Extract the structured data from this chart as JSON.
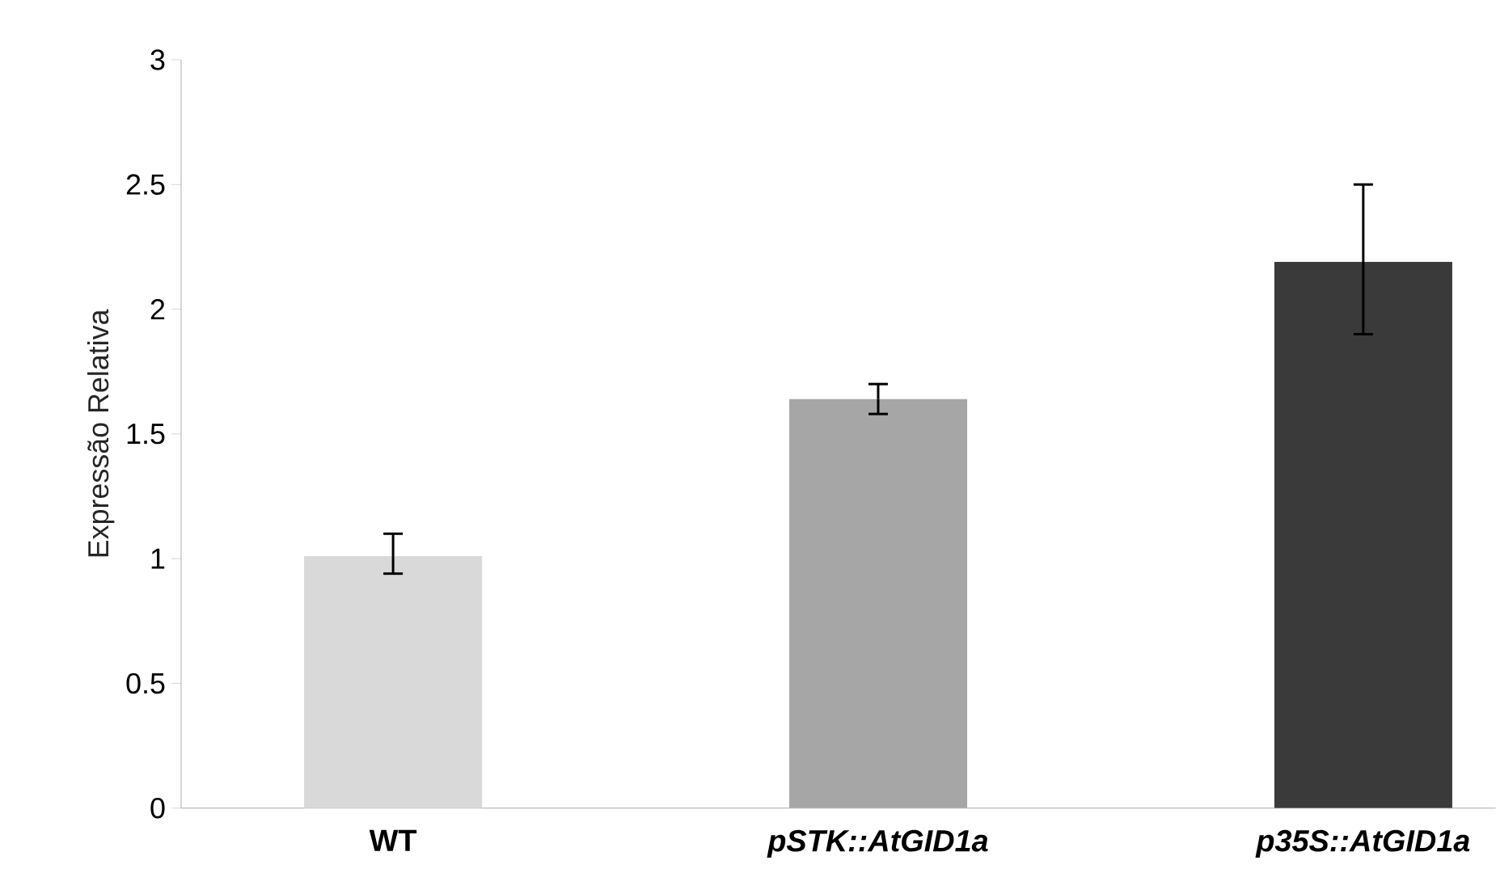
{
  "chart_data": {
    "type": "bar",
    "ylabel": "Expressão Relativa",
    "categories": [
      "WT",
      "pSTK::AtGID1a",
      "p35S::AtGID1a"
    ],
    "values": [
      1.01,
      1.64,
      2.19
    ],
    "colors": [
      "#d9d9d9",
      "#a6a6a6",
      "#3a3a3a"
    ],
    "errors": [
      [
        0.94,
        1.1
      ],
      [
        1.58,
        1.7
      ],
      [
        1.9,
        2.5
      ]
    ],
    "ylim": [
      0,
      3
    ],
    "yticks": [
      0,
      0.5,
      1,
      1.5,
      2,
      2.5,
      3
    ],
    "grid": false
  }
}
